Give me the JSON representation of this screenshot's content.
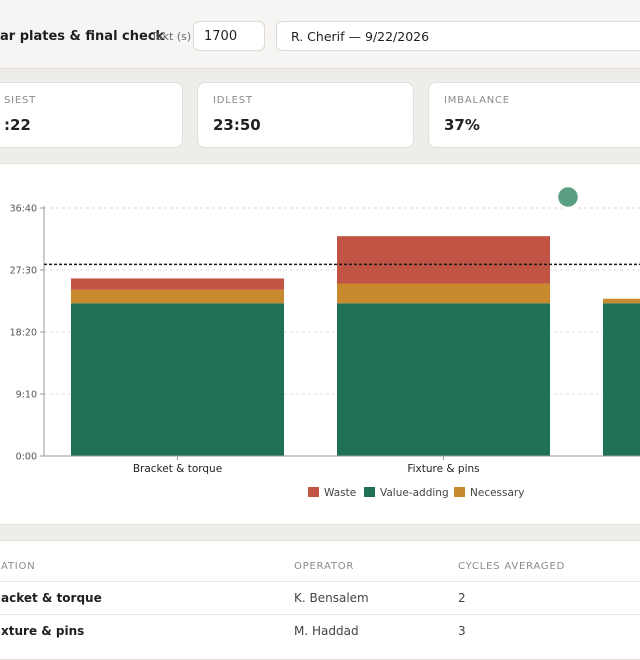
{
  "header": {
    "title": "ar plates & final check",
    "takt_label": "Takt (s)",
    "takt_value": "1700",
    "signoff_value": "R. Cherif — 9/22/2026"
  },
  "summary": {
    "busiest_label": "SIEST",
    "busiest_value": ":22",
    "idlest_label": "IDLEST",
    "idlest_value": "23:50",
    "imbalance_label": "IMBALANCE",
    "imbalance_value": "37%"
  },
  "chart_data": {
    "type": "bar",
    "stacked": true,
    "categories": [
      "Bracket & torque",
      "Fixture & pins"
    ],
    "series": [
      {
        "name": "Value-adding",
        "color": "#1e7155",
        "values": [
          1355,
          1355
        ]
      },
      {
        "name": "Necessary",
        "color": "#c9892e",
        "values": [
          120,
          175
        ]
      },
      {
        "name": "Waste",
        "color": "#c25446",
        "values": [
          100,
          420
        ]
      }
    ],
    "partial_third_bar": {
      "value_adding": 1355,
      "necessary": 40
    },
    "takt_line": 1700,
    "ylim": [
      0,
      2200
    ],
    "yticks": [
      "0:00",
      "9:10",
      "18:20",
      "27:30",
      "36:40"
    ],
    "ytick_values": [
      0,
      550,
      1100,
      1650,
      2200
    ],
    "legend": [
      "Waste",
      "Value-adding",
      "Necessary"
    ],
    "legend_position": "bottom",
    "grid": true,
    "marker_color": "#5a9e82"
  },
  "table": {
    "headers": [
      "ATION",
      "OPERATOR",
      "CYCLES AVERAGED"
    ],
    "rows": [
      {
        "station": "acket & torque",
        "operator": "K. Bensalem",
        "cycles": "2"
      },
      {
        "station": "xture & pins",
        "operator": "M. Haddad",
        "cycles": "3"
      }
    ]
  }
}
